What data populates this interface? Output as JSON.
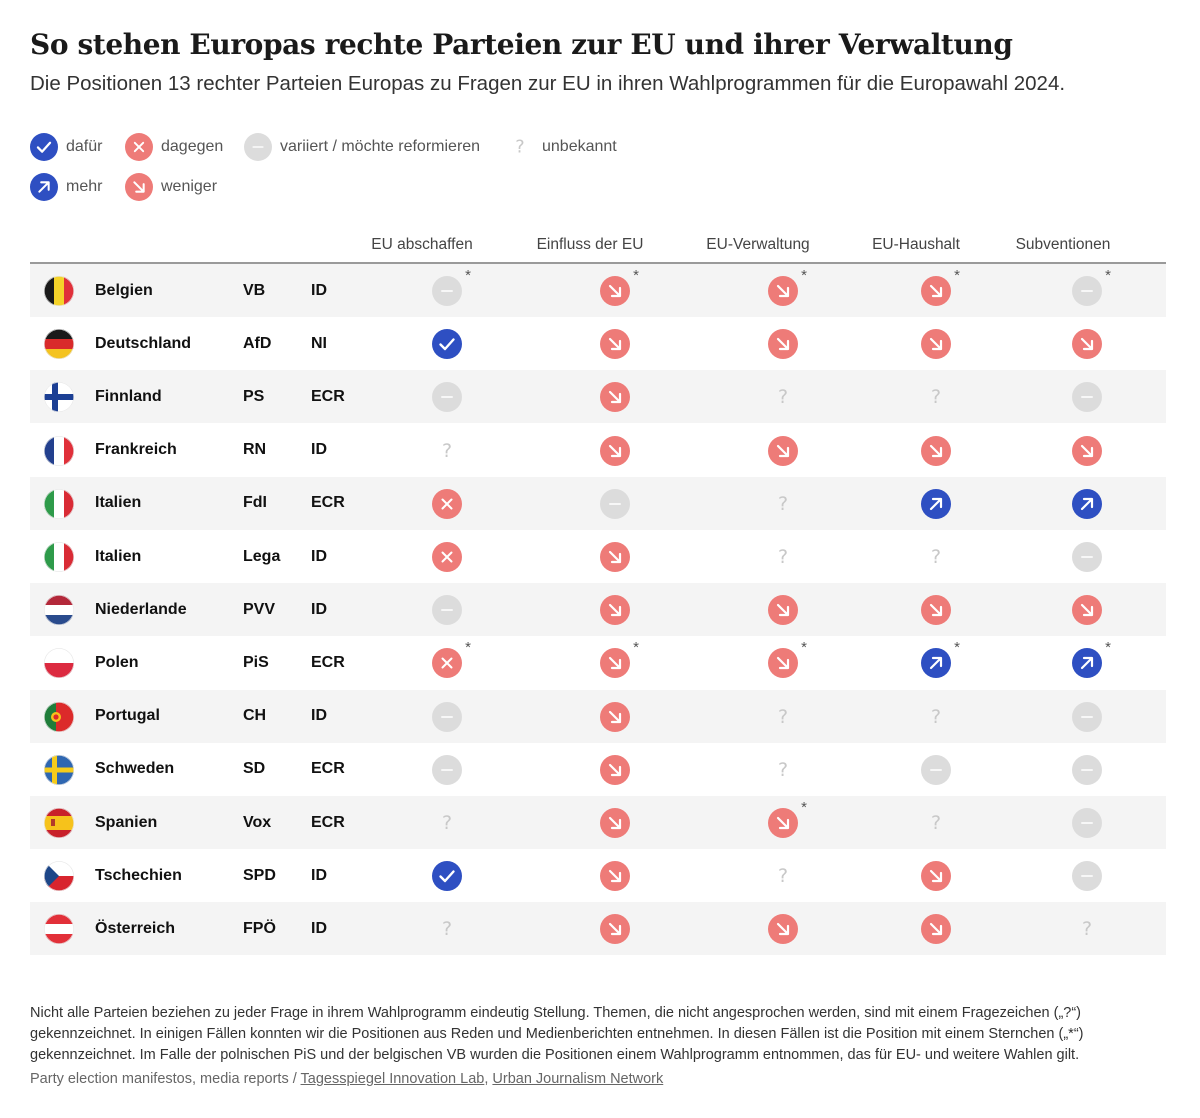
{
  "title": "So stehen Europas rechte Parteien zur EU und ihrer Verwaltung",
  "subtitle": "Die Positionen 13 rechter Parteien Europas zu Fragen zur EU in ihren Wahlprogrammen für die Europawahl 2024.",
  "legend": {
    "for": "dafür",
    "against": "dagegen",
    "varies": "variiert / möchte reformieren",
    "unknown": "unbekannt",
    "more": "mehr",
    "less": "weniger"
  },
  "colors": {
    "blue": "#2e4fc2",
    "red": "#ee7b78",
    "grey": "#dcdcdc",
    "unknown": "#c8c8c8"
  },
  "chart_data": {
    "type": "table",
    "title": "So stehen Europas rechte Parteien zur EU und ihrer Verwaltung",
    "columns": [
      "EU abschaffen",
      "Einfluss der EU",
      "EU-Verwaltung",
      "EU-Haushalt",
      "Subventionen"
    ],
    "codes": {
      "for": "dafür",
      "against": "dagegen",
      "varies": "variiert / möchte reformieren",
      "unknown": "unbekannt",
      "more": "mehr",
      "less": "weniger"
    },
    "rows": [
      {
        "country": "Belgien",
        "flag": "flag-be",
        "party": "VB",
        "group": "ID",
        "values": [
          "varies",
          "less",
          "less",
          "less",
          "varies"
        ],
        "stars": [
          true,
          true,
          true,
          true,
          true
        ]
      },
      {
        "country": "Deutschland",
        "flag": "flag-de",
        "party": "AfD",
        "group": "NI",
        "values": [
          "for",
          "less",
          "less",
          "less",
          "less"
        ],
        "stars": [
          false,
          false,
          false,
          false,
          false
        ]
      },
      {
        "country": "Finnland",
        "flag": "flag-fi",
        "party": "PS",
        "group": "ECR",
        "values": [
          "varies",
          "less",
          "unknown",
          "unknown",
          "varies"
        ],
        "stars": [
          false,
          false,
          false,
          false,
          false
        ]
      },
      {
        "country": "Frankreich",
        "flag": "flag-fr",
        "party": "RN",
        "group": "ID",
        "values": [
          "unknown",
          "less",
          "less",
          "less",
          "less"
        ],
        "stars": [
          false,
          false,
          false,
          false,
          false
        ]
      },
      {
        "country": "Italien",
        "flag": "flag-it",
        "party": "FdI",
        "group": "ECR",
        "values": [
          "against",
          "varies",
          "unknown",
          "more",
          "more"
        ],
        "stars": [
          false,
          false,
          false,
          false,
          false
        ]
      },
      {
        "country": "Italien",
        "flag": "flag-it",
        "party": "Lega",
        "group": "ID",
        "values": [
          "against",
          "less",
          "unknown",
          "unknown",
          "varies"
        ],
        "stars": [
          false,
          false,
          false,
          false,
          false
        ]
      },
      {
        "country": "Niederlande",
        "flag": "flag-nl",
        "party": "PVV",
        "group": "ID",
        "values": [
          "varies",
          "less",
          "less",
          "less",
          "less"
        ],
        "stars": [
          false,
          false,
          false,
          false,
          false
        ]
      },
      {
        "country": "Polen",
        "flag": "flag-pl",
        "party": "PiS",
        "group": "ECR",
        "values": [
          "against",
          "less",
          "less",
          "more",
          "more"
        ],
        "stars": [
          true,
          true,
          true,
          true,
          true
        ]
      },
      {
        "country": "Portugal",
        "flag": "flag-pt",
        "party": "CH",
        "group": "ID",
        "values": [
          "varies",
          "less",
          "unknown",
          "unknown",
          "varies"
        ],
        "stars": [
          false,
          false,
          false,
          false,
          false
        ]
      },
      {
        "country": "Schweden",
        "flag": "flag-se",
        "party": "SD",
        "group": "ECR",
        "values": [
          "varies",
          "less",
          "unknown",
          "varies",
          "varies"
        ],
        "stars": [
          false,
          false,
          false,
          false,
          false
        ]
      },
      {
        "country": "Spanien",
        "flag": "flag-es",
        "party": "Vox",
        "group": "ECR",
        "values": [
          "unknown",
          "less",
          "less",
          "unknown",
          "varies"
        ],
        "stars": [
          false,
          false,
          true,
          false,
          false
        ]
      },
      {
        "country": "Tschechien",
        "flag": "flag-cz",
        "party": "SPD",
        "group": "ID",
        "values": [
          "for",
          "less",
          "unknown",
          "less",
          "varies"
        ],
        "stars": [
          false,
          false,
          false,
          false,
          false
        ]
      },
      {
        "country": "Österreich",
        "flag": "flag-at",
        "party": "FPÖ",
        "group": "ID",
        "values": [
          "unknown",
          "less",
          "less",
          "less",
          "unknown"
        ],
        "stars": [
          false,
          false,
          false,
          false,
          false
        ]
      }
    ]
  },
  "star_symbol": "*",
  "unknown_symbol": "?",
  "footnote": "Nicht alle Parteien beziehen zu jeder Frage in ihrem Wahlprogramm eindeutig Stellung. Themen, die nicht angesprochen werden, sind mit einem Fragezeichen („?“) gekennzeichnet. In einigen Fällen konnten wir die Positionen aus Reden und Medienberichten entnehmen. In diesen Fällen ist die Position mit einem Sternchen („*“) gekennzeichnet. Im Falle der polnischen PiS und der belgischen VB wurden die Positionen einem Wahlprogramm entnommen, das für EU- und weitere Wahlen gilt.",
  "source": {
    "prefix": "Party election manifestos, media reports / ",
    "link1": "Tagesspiegel Innovation Lab",
    "separator": ", ",
    "link2": "Urban Journalism Network"
  }
}
